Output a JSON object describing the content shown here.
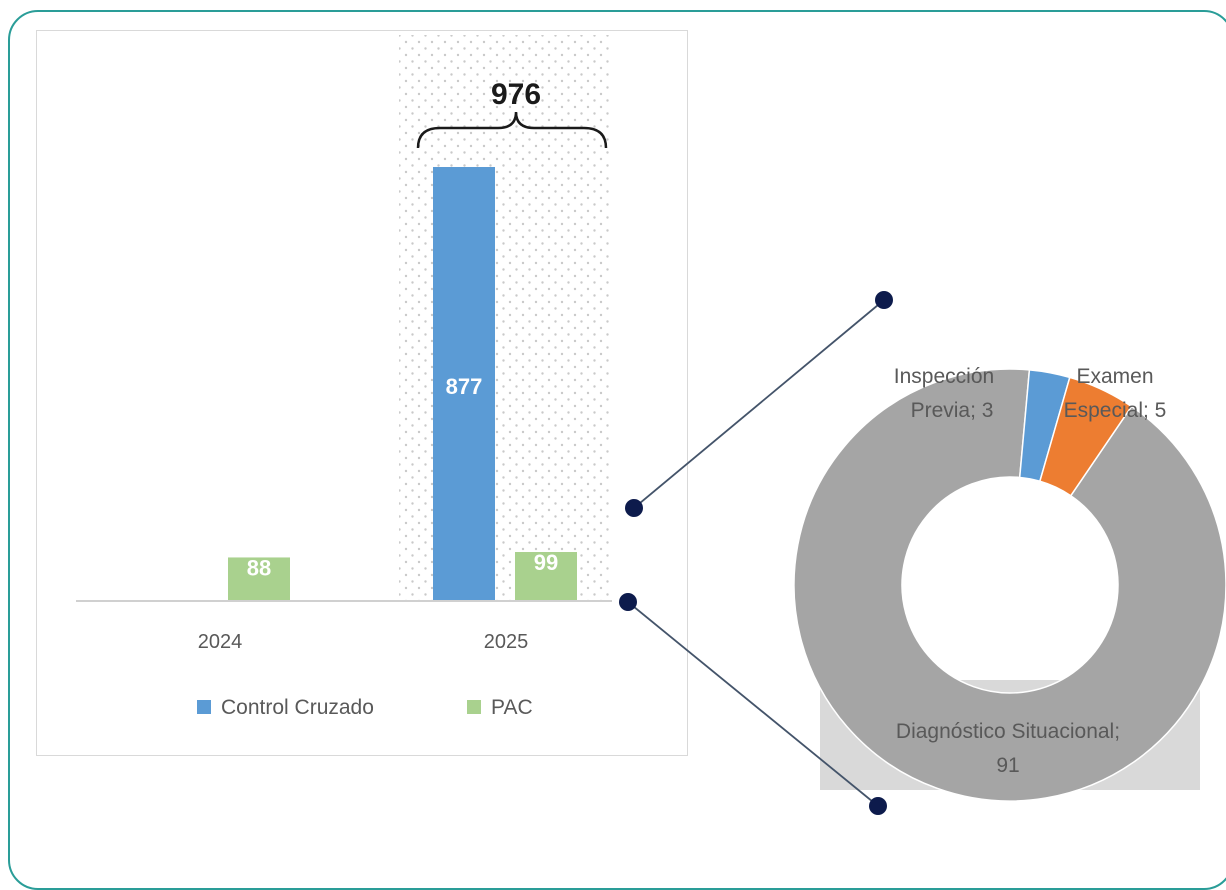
{
  "chart_data": [
    {
      "type": "bar",
      "categories": [
        "2024",
        "2025"
      ],
      "series": [
        {
          "name": "Control Cruzado",
          "color": "#5b9bd5",
          "values": [
            null,
            877
          ]
        },
        {
          "name": "PAC",
          "color": "#a9d18e",
          "values": [
            88,
            99
          ]
        }
      ],
      "bar_labels": {
        "c0_s1": "88",
        "c1_s0": "877",
        "c1_s1": "99"
      },
      "annotation": {
        "label": "976",
        "category": "2025"
      },
      "ylim": [
        0,
        1000
      ],
      "legend": "bottom",
      "grid": false
    },
    {
      "type": "pie",
      "donut": true,
      "slices": [
        {
          "name": "Inspección Previa",
          "value": 3,
          "color": "#5b9bd5",
          "label_lines": [
            "Inspección",
            "Previa; 3"
          ]
        },
        {
          "name": "Examen Especial",
          "value": 5,
          "color": "#ed7d31",
          "label_lines": [
            "Examen",
            "Especial; 5"
          ]
        },
        {
          "name": "Diagnóstico Situacional",
          "value": 91,
          "color": "#a5a5a5",
          "label_lines": [
            "Diagnóstico Situacional;",
            "91"
          ]
        }
      ],
      "legend": "none"
    }
  ]
}
